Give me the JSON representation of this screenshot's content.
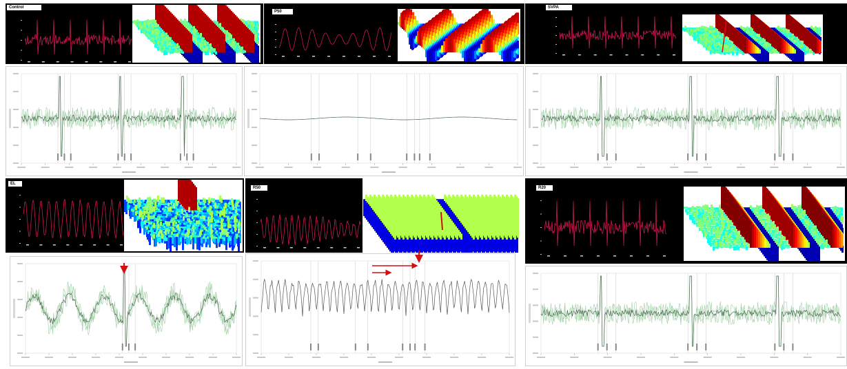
{
  "panels": {
    "control": {
      "label": "Control"
    },
    "p50": {
      "label": "P50"
    },
    "svpa": {
      "label": "SVPA"
    },
    "el": {
      "label": "EL"
    },
    "r50": {
      "label": "R50"
    },
    "r20": {
      "label": "R20"
    }
  },
  "colors": {
    "trace_red": "#d01850",
    "trace_green": "#9fcea4",
    "trace_dark": "#4a6a50",
    "arrow": "#d01010"
  }
}
